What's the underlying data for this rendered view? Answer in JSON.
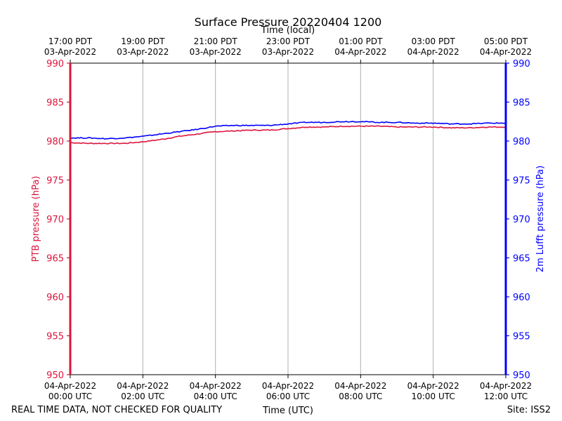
{
  "chart_data": {
    "type": "line",
    "title": "Surface Pressure 20220404 1200",
    "top_xlabel": "Time (local)",
    "xlabel": "Time (UTC)",
    "ylabel_left": "PTB pressure (hPa)",
    "ylabel_right": "2m Lufft pressure (hPa)",
    "ylim": [
      950,
      990
    ],
    "xlim_hours": [
      0,
      12
    ],
    "grid": "vertical",
    "yticks": [
      "950",
      "955",
      "960",
      "965",
      "970",
      "975",
      "980",
      "985",
      "990"
    ],
    "xticks_bottom": [
      {
        "line1": "04-Apr-2022",
        "line2": "00:00 UTC"
      },
      {
        "line1": "04-Apr-2022",
        "line2": "02:00 UTC"
      },
      {
        "line1": "04-Apr-2022",
        "line2": "04:00 UTC"
      },
      {
        "line1": "04-Apr-2022",
        "line2": "06:00 UTC"
      },
      {
        "line1": "04-Apr-2022",
        "line2": "08:00 UTC"
      },
      {
        "line1": "04-Apr-2022",
        "line2": "10:00 UTC"
      },
      {
        "line1": "04-Apr-2022",
        "line2": "12:00 UTC"
      }
    ],
    "xticks_top": [
      {
        "line1": "17:00 PDT",
        "line2": "03-Apr-2022"
      },
      {
        "line1": "19:00 PDT",
        "line2": "03-Apr-2022"
      },
      {
        "line1": "21:00 PDT",
        "line2": "03-Apr-2022"
      },
      {
        "line1": "23:00 PDT",
        "line2": "03-Apr-2022"
      },
      {
        "line1": "01:00 PDT",
        "line2": "04-Apr-2022"
      },
      {
        "line1": "03:00 PDT",
        "line2": "04-Apr-2022"
      },
      {
        "line1": "05:00 PDT",
        "line2": "04-Apr-2022"
      }
    ],
    "x_hours_utc": [
      0,
      0.5,
      1,
      1.5,
      2,
      2.5,
      3,
      3.5,
      4,
      4.5,
      5,
      5.5,
      6,
      6.5,
      7,
      7.5,
      8,
      8.5,
      9,
      9.5,
      10,
      10.5,
      11,
      11.5,
      12
    ],
    "series": [
      {
        "name": "PTB pressure (hPa)",
        "axis": "left",
        "color": "#dc143c",
        "values": [
          979.8,
          979.7,
          979.7,
          979.7,
          979.9,
          980.2,
          980.6,
          980.9,
          981.2,
          981.3,
          981.4,
          981.4,
          981.6,
          981.8,
          981.8,
          981.9,
          981.9,
          981.9,
          981.8,
          981.8,
          981.8,
          981.7,
          981.7,
          981.8,
          981.8
        ]
      },
      {
        "name": "2m Lufft pressure (hPa)",
        "axis": "right",
        "color": "#0000ff",
        "values": [
          980.4,
          980.4,
          980.3,
          980.4,
          980.6,
          980.9,
          981.2,
          981.5,
          981.9,
          982.0,
          982.0,
          982.0,
          982.2,
          982.4,
          982.4,
          982.5,
          982.5,
          982.4,
          982.4,
          982.3,
          982.3,
          982.2,
          982.2,
          982.3,
          982.3
        ]
      }
    ]
  },
  "footer": {
    "left_note": "REAL TIME DATA, NOT CHECKED FOR QUALITY",
    "site": "Site: ISS2"
  },
  "colors": {
    "left_axis": "#dc143c",
    "right_axis": "#0000ff",
    "grid": "#b0b0b0"
  }
}
